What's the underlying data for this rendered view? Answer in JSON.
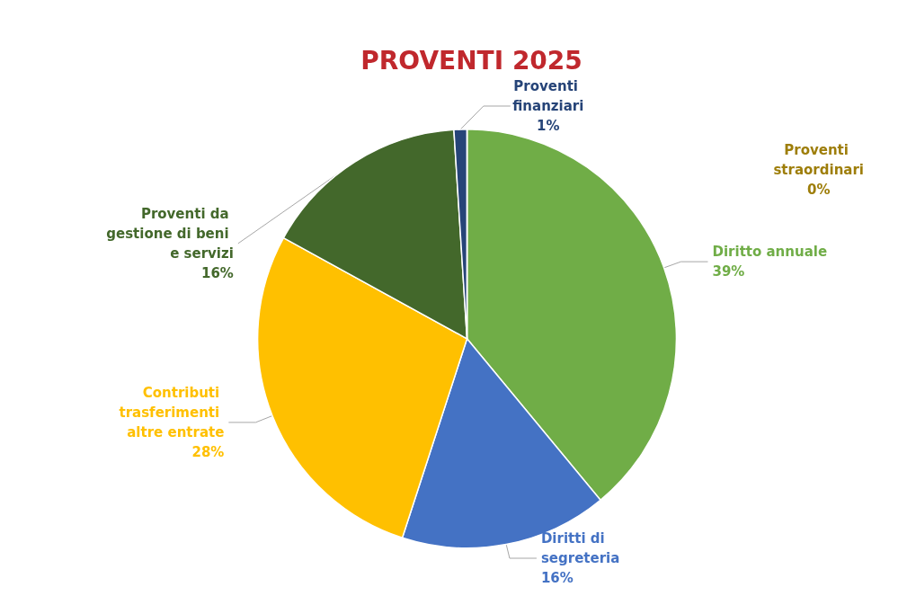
{
  "chart_data": {
    "type": "pie",
    "title": "PROVENTI 2025",
    "categories": [
      "Diritto annuale",
      "Diritti di segreteria",
      "Contributi trasferimenti altre entrate",
      "Proventi da gestione di beni e servizi",
      "Proventi finanziari",
      "Proventi straordinari"
    ],
    "values": [
      39,
      16,
      28,
      16,
      1,
      0
    ],
    "colors": [
      "#70ad47",
      "#4472c4",
      "#ffc000",
      "#43682b",
      "#264478",
      "#9e7e0a"
    ],
    "value_labels": [
      "39%",
      "16%",
      "28%",
      "16%",
      "1%",
      "0%"
    ],
    "legend": false
  }
}
